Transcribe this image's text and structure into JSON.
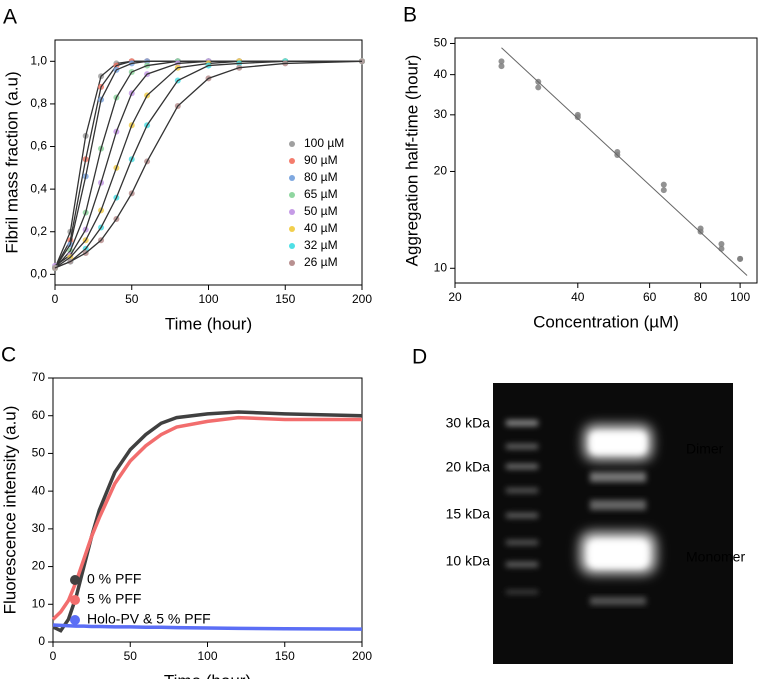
{
  "chart_data": [
    {
      "type": "scatter",
      "panel_label": "A",
      "x_label": "Time (hour)",
      "y_label": "Fibril mass fraction (a.u)",
      "x": [
        0,
        10,
        20,
        30,
        40,
        50,
        60,
        80,
        100,
        120,
        150,
        200
      ],
      "xlim": [
        0,
        200
      ],
      "xticks": [
        0,
        50,
        100,
        150,
        200
      ],
      "ylim": [
        -0.05,
        1.1
      ],
      "yticks": [
        {
          "value": 0,
          "label": "0,0"
        },
        {
          "value": 0.2,
          "label": "0,2"
        },
        {
          "value": 0.4,
          "label": "0,4"
        },
        {
          "value": 0.6,
          "label": "0,6"
        },
        {
          "value": 0.8,
          "label": "0,8"
        },
        {
          "value": 1.0,
          "label": "1,0"
        }
      ],
      "fit_color": "#333333",
      "legend": "lower right",
      "series": [
        {
          "name": "100 µM",
          "color": "#a0a0a0",
          "values": [
            0.03,
            0.2,
            0.65,
            0.93,
            0.99,
            1.0,
            1.0,
            1.0,
            1.0,
            1.0,
            1.0,
            1.0
          ]
        },
        {
          "name": "90 µM",
          "color": "#f47c6c",
          "values": [
            0.03,
            0.16,
            0.54,
            0.88,
            0.98,
            1.0,
            1.0,
            1.0,
            1.0,
            1.0,
            1.0,
            1.0
          ]
        },
        {
          "name": "80 µM",
          "color": "#7fa8e0",
          "values": [
            0.03,
            0.14,
            0.46,
            0.82,
            0.96,
            0.99,
            1.0,
            1.0,
            1.0,
            1.0,
            1.0,
            1.0
          ]
        },
        {
          "name": "65 µM",
          "color": "#8fd6a0",
          "values": [
            0.03,
            0.11,
            0.29,
            0.59,
            0.83,
            0.95,
            0.98,
            1.0,
            1.0,
            1.0,
            1.0,
            1.0
          ]
        },
        {
          "name": "50 µM",
          "color": "#c59be6",
          "values": [
            0.04,
            0.09,
            0.21,
            0.43,
            0.67,
            0.85,
            0.94,
            0.99,
            1.0,
            1.0,
            1.0,
            1.0
          ]
        },
        {
          "name": "40 µM",
          "color": "#f2cf4d",
          "values": [
            0.03,
            0.08,
            0.16,
            0.3,
            0.5,
            0.7,
            0.84,
            0.97,
            0.99,
            1.0,
            1.0,
            1.0
          ]
        },
        {
          "name": "32 µM",
          "color": "#4fe0e6",
          "values": [
            0.03,
            0.06,
            0.12,
            0.22,
            0.36,
            0.54,
            0.7,
            0.91,
            0.98,
            0.99,
            1.0,
            1.0
          ]
        },
        {
          "name": "26 µM",
          "color": "#b89090",
          "values": [
            0.03,
            0.06,
            0.1,
            0.16,
            0.26,
            0.38,
            0.53,
            0.79,
            0.92,
            0.97,
            0.99,
            1.0
          ]
        }
      ]
    },
    {
      "type": "scatter",
      "panel_label": "B",
      "x_label": "Concentration (µM)",
      "y_label": "Aggregation half-time (hour)",
      "xlog": true,
      "ylog": true,
      "xlim": [
        20,
        110
      ],
      "xticks": [
        20,
        40,
        60,
        80,
        100
      ],
      "ylim": [
        9,
        52
      ],
      "yticks": [
        10,
        20,
        30,
        40,
        50
      ],
      "series": [
        {
          "color": "#7f7f7f",
          "x": [
            26,
            26,
            32,
            32,
            40,
            40,
            50,
            50,
            65,
            65,
            80,
            80,
            90,
            90,
            100,
            100
          ],
          "values": [
            42.5,
            44,
            36.5,
            38,
            29.5,
            30,
            22.5,
            23,
            17.5,
            18.2,
            13,
            13.3,
            11.5,
            11.9,
            10.7,
            10.7
          ]
        }
      ],
      "fit_line": {
        "color": "#666666",
        "x": [
          26,
          104
        ],
        "values": [
          48.5,
          9.5
        ]
      }
    },
    {
      "type": "line",
      "panel_label": "C",
      "x_label": "Time (hour)",
      "y_label": "Fluorescence intensity (a.u)",
      "x": [
        0,
        5,
        10,
        15,
        20,
        25,
        30,
        40,
        50,
        60,
        70,
        80,
        100,
        120,
        150,
        200
      ],
      "xlim": [
        0,
        200
      ],
      "xticks": [
        0,
        50,
        100,
        150,
        200
      ],
      "ylim": [
        0,
        70
      ],
      "yticks": [
        0,
        10,
        20,
        30,
        40,
        50,
        60,
        70
      ],
      "legend": "lower left",
      "series": [
        {
          "name": "0 % PFF",
          "color": "#404040",
          "values": [
            4,
            3,
            6,
            12,
            20,
            28,
            35,
            45,
            51,
            55,
            58,
            59.5,
            60.5,
            61,
            60.5,
            60
          ]
        },
        {
          "name": "5 % PFF",
          "color": "#f26d6d",
          "values": [
            6,
            8,
            11,
            16,
            22,
            28,
            33,
            42,
            48,
            52,
            55,
            57,
            58.5,
            59.5,
            59,
            59
          ]
        },
        {
          "name": "Holo-PV & 5 % PFF",
          "color": "#5b6ef5",
          "values": [
            4.5,
            4.4,
            4.3,
            4.2,
            4.2,
            4.1,
            4.1,
            4,
            4,
            3.9,
            3.9,
            3.8,
            3.7,
            3.6,
            3.5,
            3.4
          ]
        }
      ]
    }
  ],
  "gel": {
    "panel_label": "D",
    "markers": [
      "30 kDa",
      "20 kDa",
      "15 kDa",
      "10 kDa"
    ],
    "bands": [
      "Dimer",
      "Monomer"
    ]
  }
}
